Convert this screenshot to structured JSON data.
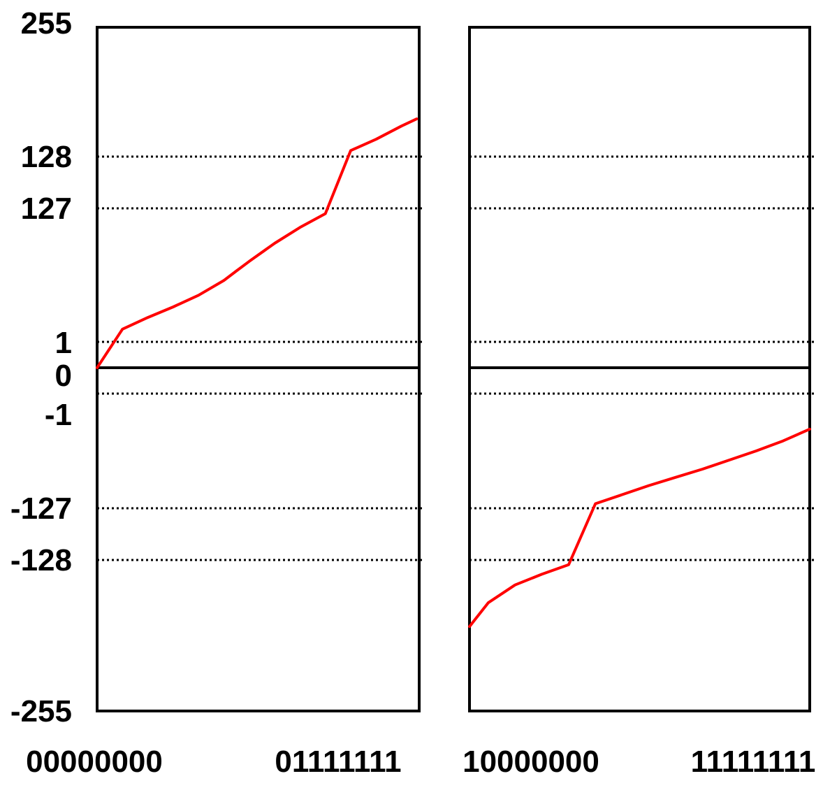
{
  "chart_data": {
    "type": "line",
    "grid": "dotted horizontal reference lines",
    "colors": {
      "line": "#ff0000",
      "frame": "#000000",
      "grid": "#000000"
    },
    "y_range": [
      -255,
      255
    ],
    "y_tick_labels": [
      {
        "value": 255,
        "text": "255"
      },
      {
        "value": 128,
        "text": "128"
      },
      {
        "value": 127,
        "text": "127"
      },
      {
        "value": 1,
        "text": "1"
      },
      {
        "value": 0,
        "text": "0"
      },
      {
        "value": -1,
        "text": "-1"
      },
      {
        "value": -127,
        "text": "-127"
      },
      {
        "value": -128,
        "text": "-128"
      },
      {
        "value": -255,
        "text": "-255"
      }
    ],
    "reference_lines": [
      128,
      127,
      1,
      -1,
      -127,
      -128
    ],
    "zero_line": 0,
    "panels": [
      {
        "x_start_label": "00000000",
        "x_end_label": "01111111",
        "x_range": [
          0,
          127
        ],
        "series": {
          "x": [
            0,
            10,
            20,
            30,
            40,
            50,
            55,
            60,
            70,
            80,
            90,
            100,
            110,
            120,
            126
          ],
          "y": [
            0,
            13,
            24,
            34,
            45,
            59,
            68,
            77,
            94,
            109,
            122,
            134,
            145,
            158,
            165
          ]
        }
      },
      {
        "x_start_label": "10000000",
        "x_end_label": "11111111",
        "x_range": [
          128,
          255
        ],
        "series": {
          "x": [
            128,
            135,
            145,
            155,
            165,
            175,
            185,
            195,
            205,
            215,
            225,
            235,
            245,
            255
          ],
          "y": [
            -184,
            -164,
            -149,
            -140,
            -132,
            -122,
            -112,
            -102,
            -93,
            -84,
            -74,
            -64,
            -53,
            -40
          ]
        }
      }
    ]
  }
}
